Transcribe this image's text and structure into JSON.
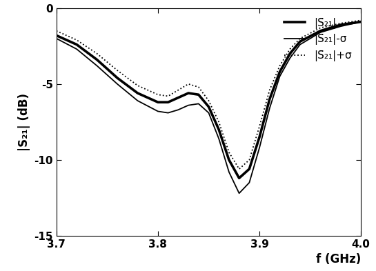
{
  "chart_data": {
    "type": "line",
    "x_label": "f (GHz)",
    "y_label": "|S₂₁| (dB)",
    "x": [
      3.7,
      3.72,
      3.74,
      3.76,
      3.78,
      3.8,
      3.81,
      3.82,
      3.83,
      3.84,
      3.85,
      3.86,
      3.87,
      3.88,
      3.89,
      3.9,
      3.91,
      3.92,
      3.93,
      3.94,
      3.96,
      3.98,
      4.0
    ],
    "series": [
      {
        "name": "|S̄₂₁|",
        "color": "#000000",
        "line_style": "solid",
        "values": [
          -1.8,
          -2.4,
          -3.4,
          -4.6,
          -5.6,
          -6.2,
          -6.2,
          -5.9,
          -5.6,
          -5.7,
          -6.5,
          -8.0,
          -10.0,
          -11.2,
          -10.6,
          -8.5,
          -6.0,
          -4.2,
          -3.0,
          -2.2,
          -1.5,
          -1.1,
          -0.9
        ]
      },
      {
        "name": "|S̄₂₁|-σ",
        "color": "#000000",
        "line_style": "solid",
        "values": [
          -2.0,
          -2.7,
          -3.8,
          -5.0,
          -6.1,
          -6.8,
          -6.9,
          -6.7,
          -6.4,
          -6.3,
          -6.9,
          -8.6,
          -10.8,
          -12.2,
          -11.5,
          -9.2,
          -6.6,
          -4.5,
          -3.3,
          -2.4,
          -1.6,
          -1.2,
          -0.9
        ]
      },
      {
        "name": "|S̄₂₁|+σ",
        "color": "#000000",
        "line_style": "dotted",
        "values": [
          -1.5,
          -2.1,
          -3.0,
          -4.1,
          -5.1,
          -5.7,
          -5.8,
          -5.4,
          -5.0,
          -5.2,
          -6.1,
          -7.5,
          -9.5,
          -10.6,
          -10.0,
          -7.8,
          -5.4,
          -3.8,
          -2.7,
          -2.0,
          -1.3,
          -1.0,
          -0.8
        ]
      }
    ],
    "xlim": [
      3.7,
      4.0
    ],
    "xticks": [
      3.7,
      3.8,
      3.9,
      4.0
    ],
    "ylim": [
      -15,
      0
    ],
    "yticks": [
      -15,
      -10,
      -5,
      0
    ],
    "legend": "upper right",
    "grid": false
  }
}
